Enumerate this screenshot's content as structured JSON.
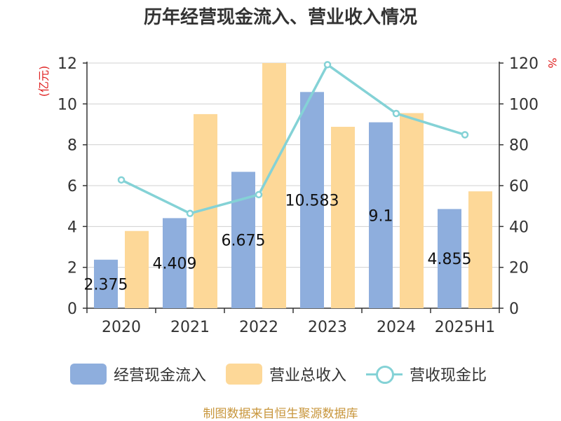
{
  "chart_data": {
    "type": "bar",
    "title": "历年经营现金流入、营业收入情况",
    "categories": [
      "2020",
      "2021",
      "2022",
      "2023",
      "2024",
      "2025H1"
    ],
    "left_unit": "(亿元)",
    "right_unit": "%",
    "ylim": [
      0,
      12
    ],
    "y2lim": [
      0,
      120
    ],
    "y_ticks": [
      0,
      2,
      4,
      6,
      8,
      10,
      12
    ],
    "y2_ticks": [
      0,
      20,
      40,
      60,
      80,
      100,
      120
    ],
    "grid": true,
    "legend_position": "bottom",
    "series": [
      {
        "name": "经营现金流入",
        "kind": "bar",
        "axis": "left",
        "color": "#8eaedd",
        "values": [
          2.375,
          4.409,
          6.675,
          10.583,
          9.1,
          4.855
        ],
        "labels": [
          "2.375",
          "4.409",
          "6.675",
          "10.583",
          "9.1",
          "4.855"
        ]
      },
      {
        "name": "营业总收入",
        "kind": "bar",
        "axis": "left",
        "color": "#fdd898",
        "values": [
          3.78,
          9.5,
          12.0,
          8.88,
          9.55,
          5.72
        ]
      },
      {
        "name": "营收现金比",
        "kind": "line",
        "axis": "right",
        "color": "#84d2d6",
        "values": [
          62.8,
          46.4,
          55.6,
          119.2,
          95.3,
          84.9
        ]
      }
    ]
  },
  "footer": {
    "source": "制图数据来自恒生聚源数据库"
  }
}
